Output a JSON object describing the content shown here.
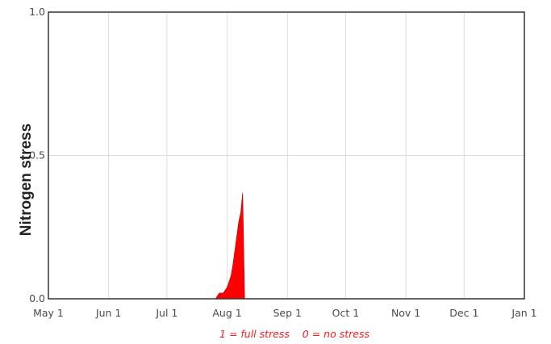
{
  "chart_data": {
    "type": "area",
    "ylabel": "Nitrogen stress",
    "xlabel": "",
    "title": "",
    "annotation": "1 = full stress    0 = no stress",
    "ylim": [
      0,
      1
    ],
    "y_ticks": [
      {
        "value": 0.0,
        "label": "0.0"
      },
      {
        "value": 0.5,
        "label": "0.5"
      },
      {
        "value": 1.0,
        "label": "1.0"
      }
    ],
    "xlim": [
      "2023-05-01",
      "2024-01-01"
    ],
    "x_ticks": [
      {
        "date": "2023-05-01",
        "label": "May 1"
      },
      {
        "date": "2023-06-01",
        "label": "Jun 1"
      },
      {
        "date": "2023-07-01",
        "label": "Jul 1"
      },
      {
        "date": "2023-08-01",
        "label": "Aug 1"
      },
      {
        "date": "2023-09-01",
        "label": "Sep 1"
      },
      {
        "date": "2023-10-01",
        "label": "Oct 1"
      },
      {
        "date": "2023-11-01",
        "label": "Nov 1"
      },
      {
        "date": "2023-12-01",
        "label": "Dec 1"
      },
      {
        "date": "2024-01-01",
        "label": "Jan 1"
      }
    ],
    "grid": true,
    "series": [
      {
        "color": "#ff0000",
        "points": [
          {
            "x": "2023-07-26",
            "y": 0.0
          },
          {
            "x": "2023-07-27",
            "y": 0.01
          },
          {
            "x": "2023-07-28",
            "y": 0.02
          },
          {
            "x": "2023-07-29",
            "y": 0.02
          },
          {
            "x": "2023-07-30",
            "y": 0.02
          },
          {
            "x": "2023-07-31",
            "y": 0.03
          },
          {
            "x": "2023-08-01",
            "y": 0.04
          },
          {
            "x": "2023-08-02",
            "y": 0.06
          },
          {
            "x": "2023-08-03",
            "y": 0.08
          },
          {
            "x": "2023-08-04",
            "y": 0.12
          },
          {
            "x": "2023-08-05",
            "y": 0.17
          },
          {
            "x": "2023-08-06",
            "y": 0.22
          },
          {
            "x": "2023-08-07",
            "y": 0.27
          },
          {
            "x": "2023-08-08",
            "y": 0.3
          },
          {
            "x": "2023-08-09",
            "y": 0.37
          },
          {
            "x": "2023-08-10",
            "y": 0.0
          }
        ]
      }
    ]
  }
}
